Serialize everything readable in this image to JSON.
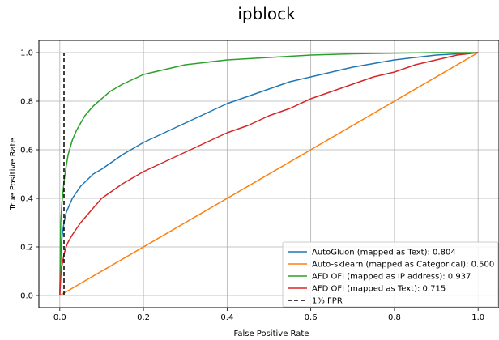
{
  "chart_data": {
    "type": "line",
    "title": "ipblock",
    "xlabel": "False Positive Rate",
    "ylabel": "True Positive Rate",
    "xlim": [
      -0.05,
      1.05
    ],
    "ylim": [
      -0.05,
      1.05
    ],
    "xticks": [
      0.0,
      0.2,
      0.4,
      0.6,
      0.8,
      1.0
    ],
    "yticks": [
      0.0,
      0.2,
      0.4,
      0.6,
      0.8,
      1.0
    ],
    "xtick_labels": [
      "0.0",
      "0.2",
      "0.4",
      "0.6",
      "0.8",
      "1.0"
    ],
    "ytick_labels": [
      "0.0",
      "0.2",
      "0.4",
      "0.6",
      "0.8",
      "1.0"
    ],
    "grid": true,
    "legend_position": "lower-right",
    "series": [
      {
        "name": "AutoGluon (mapped as Text): 0.804",
        "color": "#1f77b4",
        "style": "solid",
        "x": [
          0,
          0.003,
          0.006,
          0.01,
          0.015,
          0.02,
          0.03,
          0.05,
          0.08,
          0.1,
          0.15,
          0.2,
          0.25,
          0.3,
          0.35,
          0.4,
          0.45,
          0.5,
          0.55,
          0.6,
          0.65,
          0.7,
          0.75,
          0.8,
          0.85,
          0.9,
          0.95,
          1.0
        ],
        "y": [
          0,
          0.2,
          0.25,
          0.3,
          0.34,
          0.36,
          0.4,
          0.45,
          0.5,
          0.52,
          0.58,
          0.63,
          0.67,
          0.71,
          0.75,
          0.79,
          0.82,
          0.85,
          0.88,
          0.9,
          0.92,
          0.94,
          0.955,
          0.97,
          0.98,
          0.99,
          0.995,
          1.0
        ]
      },
      {
        "name": "Auto-sklearn (mapped as Categorical): 0.500",
        "color": "#ff7f0e",
        "style": "solid",
        "x": [
          0,
          1.0
        ],
        "y": [
          0,
          1.0
        ]
      },
      {
        "name": "AFD OFI (mapped as IP address): 0.937",
        "color": "#2ca02c",
        "style": "solid",
        "x": [
          0,
          0.002,
          0.005,
          0.008,
          0.01,
          0.015,
          0.02,
          0.03,
          0.04,
          0.05,
          0.06,
          0.08,
          0.1,
          0.12,
          0.15,
          0.2,
          0.25,
          0.3,
          0.4,
          0.5,
          0.6,
          0.7,
          0.8,
          0.9,
          1.0
        ],
        "y": [
          0,
          0.3,
          0.38,
          0.43,
          0.47,
          0.53,
          0.58,
          0.64,
          0.68,
          0.71,
          0.74,
          0.78,
          0.81,
          0.84,
          0.87,
          0.91,
          0.93,
          0.95,
          0.97,
          0.98,
          0.99,
          0.995,
          0.998,
          1.0,
          1.0
        ]
      },
      {
        "name": "AFD OFI (mapped as Text): 0.715",
        "color": "#d62728",
        "style": "solid",
        "x": [
          0,
          0.003,
          0.006,
          0.01,
          0.015,
          0.02,
          0.03,
          0.05,
          0.08,
          0.1,
          0.15,
          0.2,
          0.25,
          0.3,
          0.35,
          0.4,
          0.45,
          0.5,
          0.55,
          0.6,
          0.65,
          0.7,
          0.75,
          0.8,
          0.85,
          0.9,
          0.95,
          1.0
        ],
        "y": [
          0,
          0.1,
          0.13,
          0.17,
          0.2,
          0.22,
          0.25,
          0.3,
          0.36,
          0.4,
          0.46,
          0.51,
          0.55,
          0.59,
          0.63,
          0.67,
          0.7,
          0.74,
          0.77,
          0.81,
          0.84,
          0.87,
          0.9,
          0.92,
          0.95,
          0.97,
          0.99,
          1.0
        ]
      },
      {
        "name": "1% FPR",
        "color": "#000000",
        "style": "dashed",
        "x": [
          0.01,
          0.01
        ],
        "y": [
          0,
          1.0
        ]
      }
    ]
  }
}
